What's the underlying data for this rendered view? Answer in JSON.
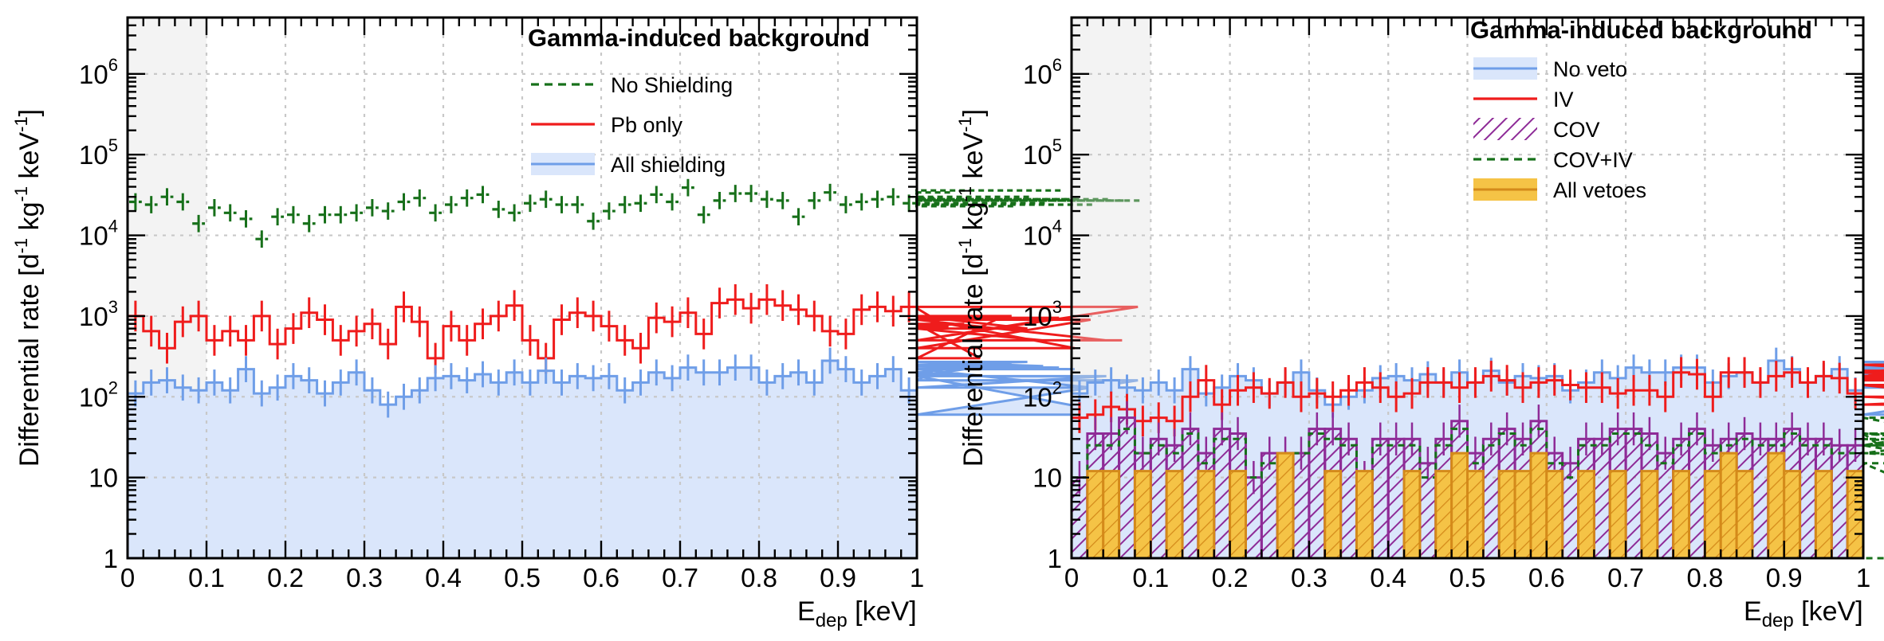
{
  "colors": {
    "no_shielding": "#17701a",
    "pb_only": "#ef1c1c",
    "all_shielding_line": "#6f9ee8",
    "all_shielding_fill": "#dae6fb",
    "cov": "#8e2b97",
    "cov_iv": "#17701a",
    "all_vetoes_line": "#d48a1a",
    "all_vetoes_fill": "#f5c346",
    "region_shade": "#dedede"
  },
  "chart_data": [
    {
      "type": "histogram",
      "xlabel": "E",
      "xlabel_sub": "dep",
      "xlabel_unit": " [keV]",
      "ylabel": "Differential rate [d",
      "ylabel_parts": [
        "Differential rate [d",
        "-1",
        " kg",
        "-1",
        " keV",
        "-1",
        "]"
      ],
      "xlim": [
        0,
        1
      ],
      "ylim": [
        1,
        5000000
      ],
      "yscale": "log",
      "grid": true,
      "shaded_region": [
        0,
        0.1
      ],
      "legend_title": "Gamma-induced background",
      "legend_position": "top-right",
      "x_ticks": [
        "0",
        "0.1",
        "0.2",
        "0.3",
        "0.4",
        "0.5",
        "0.6",
        "0.7",
        "0.8",
        "0.9",
        "1"
      ],
      "y_ticks": [
        {
          "value": 1,
          "base": "1",
          "exp": ""
        },
        {
          "value": 10,
          "base": "10",
          "exp": ""
        },
        {
          "value": 100,
          "base": "10",
          "exp": "2"
        },
        {
          "value": 1000,
          "base": "10",
          "exp": "3"
        },
        {
          "value": 10000,
          "base": "10",
          "exp": "4"
        },
        {
          "value": 100000,
          "base": "10",
          "exp": "5"
        },
        {
          "value": 1000000,
          "base": "10",
          "exp": "6"
        }
      ],
      "bin_width": 0.02,
      "series": [
        {
          "name": "No Shielding",
          "style": "dashed-points",
          "values": [
            26000,
            24000,
            30000,
            26000,
            14000,
            22000,
            19000,
            16000,
            9000,
            17000,
            18000,
            14000,
            18000,
            18000,
            19000,
            22000,
            20000,
            26000,
            29000,
            19000,
            24000,
            29000,
            32000,
            21000,
            19000,
            25000,
            28000,
            24000,
            24000,
            15000,
            20000,
            24000,
            25000,
            32000,
            26000,
            39000,
            18000,
            27000,
            33000,
            33000,
            28000,
            27000,
            17000,
            27000,
            34000,
            24000,
            26000,
            28000,
            30000,
            25000,
            33000,
            29000,
            34000,
            24000,
            28000,
            27000,
            23000,
            30000,
            25000,
            36000,
            28000,
            24000,
            28000,
            27000,
            27000
          ]
        },
        {
          "name": "Pb only",
          "style": "step-errors",
          "values": [
            1000,
            650,
            400,
            850,
            1000,
            500,
            650,
            500,
            1000,
            450,
            700,
            1100,
            900,
            500,
            650,
            800,
            450,
            1300,
            850,
            300,
            750,
            500,
            800,
            1000,
            1350,
            500,
            300,
            900,
            1100,
            1000,
            750,
            500,
            400,
            950,
            850,
            1100,
            600,
            1450,
            1600,
            1250,
            1600,
            1350,
            1200,
            1000,
            650,
            600,
            1200,
            1300,
            1150,
            1300,
            1250,
            950,
            750,
            800,
            300,
            900,
            1000,
            700,
            500,
            950,
            400,
            900,
            500,
            500,
            1300
          ]
        },
        {
          "name": "All shielding",
          "style": "filled-step",
          "values": [
            110,
            150,
            160,
            130,
            120,
            150,
            120,
            220,
            110,
            130,
            180,
            160,
            110,
            150,
            200,
            120,
            80,
            100,
            120,
            170,
            180,
            160,
            190,
            150,
            200,
            150,
            210,
            150,
            180,
            170,
            180,
            120,
            150,
            200,
            170,
            230,
            200,
            200,
            230,
            230,
            150,
            180,
            200,
            150,
            280,
            220,
            150,
            180,
            220,
            120,
            160,
            200,
            220,
            190,
            180,
            250,
            250,
            270,
            240,
            230,
            220,
            130,
            180,
            60,
            160
          ]
        }
      ]
    },
    {
      "type": "histogram",
      "xlabel": "E",
      "xlabel_sub": "dep",
      "xlabel_unit": " [keV]",
      "ylabel": "Differential rate [d",
      "ylabel_parts": [
        "Differential rate [d",
        "-1",
        " kg",
        "-1",
        " keV",
        "-1",
        "]"
      ],
      "xlim": [
        0,
        1
      ],
      "ylim": [
        1,
        5000000
      ],
      "yscale": "log",
      "grid": true,
      "shaded_region": [
        0,
        0.1
      ],
      "legend_title": "Gamma-induced background",
      "legend_position": "top-right",
      "x_ticks": [
        "0",
        "0.1",
        "0.2",
        "0.3",
        "0.4",
        "0.5",
        "0.6",
        "0.7",
        "0.8",
        "0.9",
        "1"
      ],
      "y_ticks": [
        {
          "value": 1,
          "base": "1",
          "exp": ""
        },
        {
          "value": 10,
          "base": "10",
          "exp": ""
        },
        {
          "value": 100,
          "base": "10",
          "exp": "2"
        },
        {
          "value": 1000,
          "base": "10",
          "exp": "3"
        },
        {
          "value": 10000,
          "base": "10",
          "exp": "4"
        },
        {
          "value": 100000,
          "base": "10",
          "exp": "5"
        },
        {
          "value": 1000000,
          "base": "10",
          "exp": "6"
        }
      ],
      "bin_width": 0.02,
      "series": [
        {
          "name": "No veto",
          "style": "filled-step",
          "values": [
            110,
            150,
            160,
            130,
            120,
            150,
            120,
            220,
            110,
            130,
            180,
            160,
            110,
            150,
            200,
            120,
            80,
            100,
            120,
            170,
            180,
            160,
            190,
            150,
            200,
            150,
            210,
            150,
            180,
            170,
            180,
            120,
            150,
            200,
            170,
            230,
            200,
            200,
            230,
            230,
            150,
            180,
            200,
            150,
            280,
            220,
            150,
            180,
            220,
            120,
            160,
            200,
            220,
            190,
            180,
            250,
            250,
            270,
            240,
            230,
            220,
            130,
            180,
            60,
            160
          ]
        },
        {
          "name": "IV",
          "style": "step-errors",
          "values": [
            55,
            60,
            75,
            70,
            50,
            55,
            50,
            100,
            160,
            80,
            120,
            130,
            110,
            150,
            100,
            110,
            100,
            120,
            150,
            130,
            100,
            110,
            150,
            150,
            130,
            150,
            180,
            160,
            130,
            150,
            160,
            140,
            130,
            130,
            110,
            120,
            120,
            100,
            200,
            190,
            100,
            200,
            200,
            150,
            180,
            200,
            150,
            180,
            170,
            110,
            170,
            210,
            160,
            180,
            200,
            250,
            210,
            200,
            160,
            170,
            140,
            80,
            100,
            80,
            100
          ]
        },
        {
          "name": "COV",
          "style": "hatched",
          "values": [
            10,
            35,
            35,
            55,
            20,
            30,
            25,
            40,
            20,
            40,
            35,
            10,
            20,
            20,
            20,
            40,
            40,
            30,
            10,
            30,
            30,
            30,
            15,
            30,
            50,
            20,
            30,
            40,
            30,
            50,
            20,
            15,
            30,
            30,
            40,
            40,
            35,
            20,
            30,
            40,
            25,
            30,
            35,
            30,
            30,
            40,
            30,
            30,
            25,
            25,
            40,
            30,
            30,
            25,
            30,
            40,
            35,
            30,
            30,
            40,
            30,
            70,
            25,
            20,
            0
          ]
        },
        {
          "name": "COV+IV",
          "style": "dashed-step",
          "values": [
            10,
            25,
            25,
            40,
            20,
            25,
            20,
            35,
            15,
            30,
            30,
            10,
            15,
            15,
            20,
            35,
            30,
            25,
            10,
            25,
            25,
            25,
            10,
            25,
            40,
            15,
            25,
            35,
            25,
            40,
            15,
            10,
            25,
            25,
            35,
            35,
            25,
            15,
            25,
            35,
            20,
            25,
            30,
            25,
            25,
            35,
            25,
            25,
            20,
            20,
            35,
            25,
            25,
            20,
            25,
            35,
            30,
            25,
            25,
            35,
            25,
            55,
            20,
            15,
            0
          ]
        },
        {
          "name": "All vetoes",
          "style": "filled-step-gold",
          "values": [
            0,
            12,
            12,
            0,
            12,
            0,
            12,
            0,
            12,
            0,
            12,
            0,
            0,
            20,
            0,
            0,
            12,
            0,
            12,
            0,
            0,
            12,
            0,
            12,
            20,
            12,
            0,
            12,
            12,
            20,
            12,
            0,
            12,
            0,
            12,
            0,
            12,
            0,
            12,
            0,
            12,
            20,
            12,
            0,
            20,
            12,
            0,
            12,
            0,
            12,
            0,
            12,
            0,
            12,
            0,
            20,
            12,
            0,
            12,
            0,
            12,
            0,
            0,
            0,
            0
          ]
        }
      ]
    }
  ]
}
